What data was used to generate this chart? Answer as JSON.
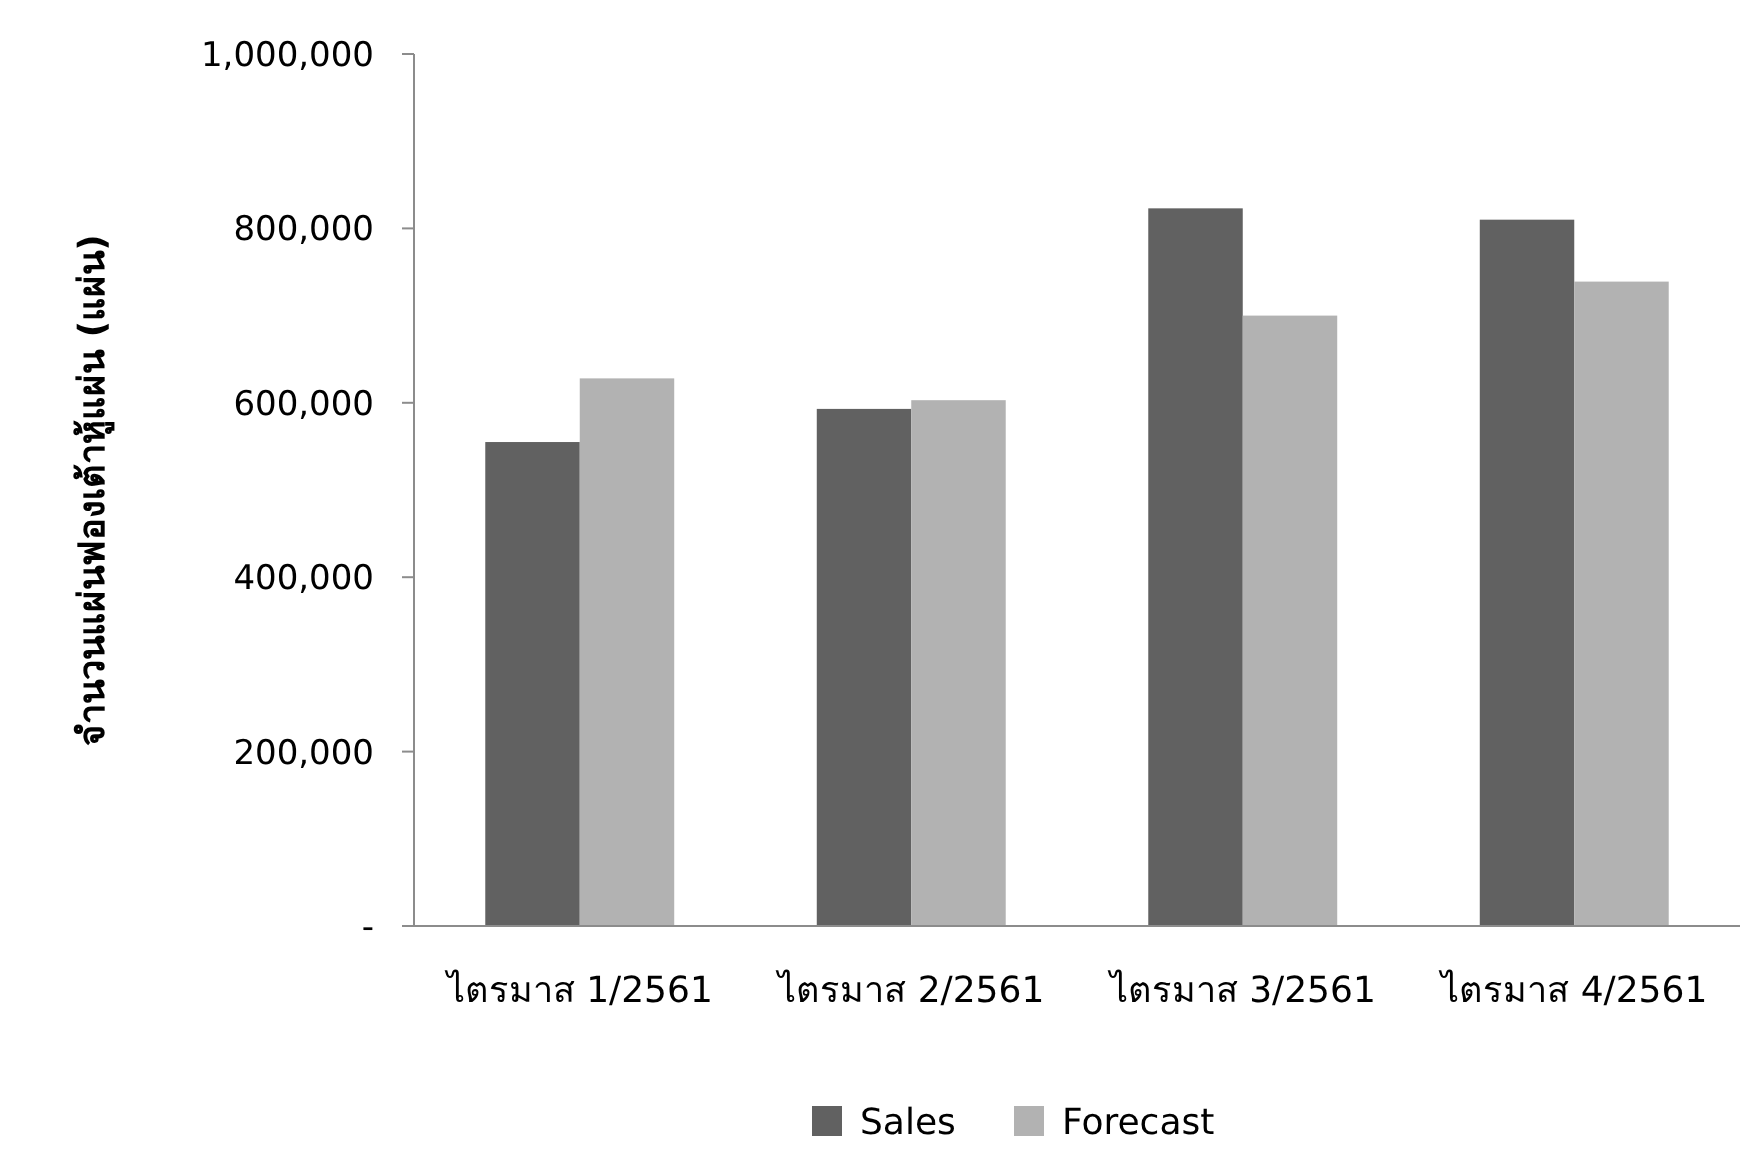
{
  "chart_data": {
    "type": "bar",
    "ylabel": "จำนวนแผ่นฟองเต้าหู้แผ่น (แผ่น)",
    "categories": [
      "ไตรมาส 1/2561",
      "ไตรมาส 2/2561",
      "ไตรมาส 3/2561",
      "ไตรมาส 4/2561"
    ],
    "series": [
      {
        "name": "Sales",
        "color": "#616161",
        "values": [
          555000,
          593000,
          823000,
          810000
        ]
      },
      {
        "name": "Forecast",
        "color": "#b2b2b2",
        "values": [
          628000,
          603000,
          700000,
          739000
        ]
      }
    ],
    "ylim": [
      0,
      1000000
    ],
    "yticks": [
      {
        "value": 0,
        "label": "-"
      },
      {
        "value": 200000,
        "label": "200,000"
      },
      {
        "value": 400000,
        "label": "400,000"
      },
      {
        "value": 600000,
        "label": "600,000"
      },
      {
        "value": 800000,
        "label": "800,000"
      },
      {
        "value": 1000000,
        "label": "1,000,000"
      }
    ],
    "grid": false,
    "legend": "bottom"
  }
}
